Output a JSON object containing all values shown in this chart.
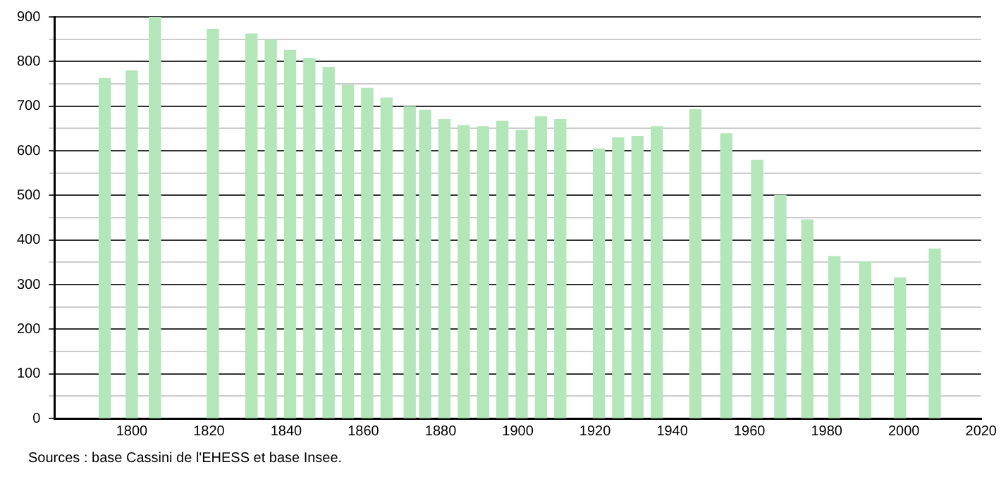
{
  "chart_data": {
    "type": "bar",
    "x": [
      1793,
      1800,
      1806,
      1821,
      1831,
      1836,
      1841,
      1846,
      1851,
      1856,
      1861,
      1866,
      1872,
      1876,
      1881,
      1886,
      1891,
      1896,
      1901,
      1906,
      1911,
      1921,
      1926,
      1931,
      1936,
      1946,
      1954,
      1962,
      1968,
      1975,
      1982,
      1990,
      1999,
      2008
    ],
    "values": [
      762,
      779,
      900,
      872,
      862,
      848,
      825,
      807,
      787,
      747,
      740,
      718,
      699,
      691,
      670,
      656,
      654,
      666,
      646,
      676,
      670,
      604,
      629,
      632,
      654,
      692,
      638,
      579,
      500,
      445,
      363,
      351,
      315,
      380
    ],
    "color": "#b3e6b8",
    "xlim": [
      1780,
      2020
    ],
    "xticks": [
      1800,
      1820,
      1840,
      1860,
      1880,
      1900,
      1920,
      1940,
      1960,
      1980,
      2000,
      2020
    ],
    "ylim": [
      0,
      900
    ],
    "yticks": [
      0,
      {
        "value": 50,
        "label": null
      },
      100,
      {
        "value": 150,
        "label": null
      },
      200,
      {
        "value": 250,
        "label": null
      },
      300,
      {
        "value": 350,
        "label": null
      },
      400,
      {
        "value": 450,
        "label": null
      },
      500,
      {
        "value": 550,
        "label": null
      },
      600,
      {
        "value": 650,
        "label": null
      },
      700,
      {
        "value": 750,
        "label": null
      },
      800,
      {
        "value": 850,
        "label": null
      },
      900
    ],
    "grid": "y",
    "annotations": [
      "Sources : base Cassini de l'EHESS et base Insee."
    ]
  }
}
